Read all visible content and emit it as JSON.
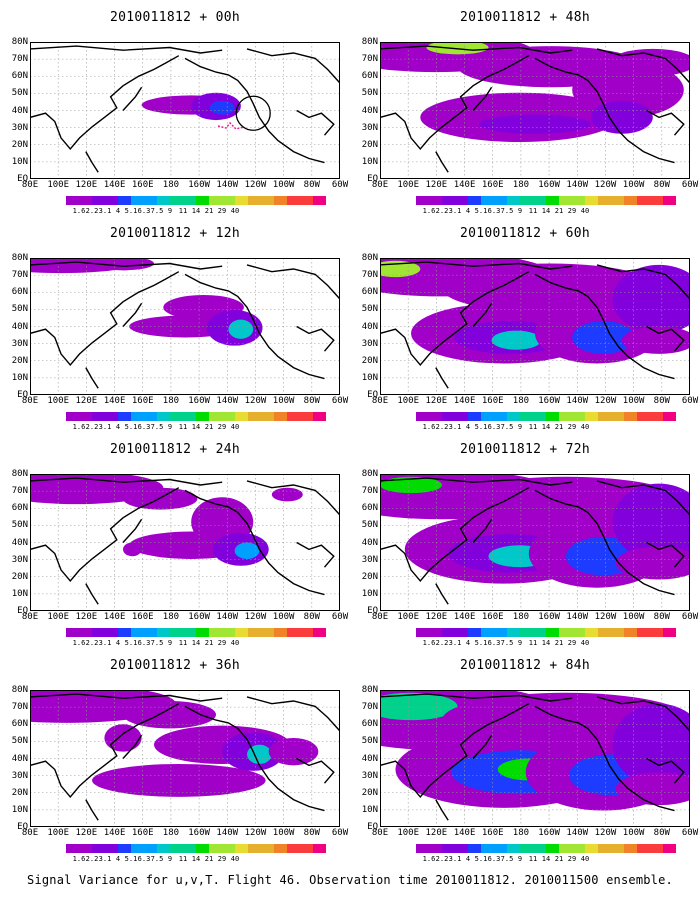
{
  "panels": [
    {
      "title": "2010011812 + 00h",
      "blobs": [
        [
          0.52,
          0.46,
          0.16,
          0.07,
          0
        ],
        [
          0.6,
          0.47,
          0.08,
          0.1,
          1
        ],
        [
          0.62,
          0.48,
          0.04,
          0.05,
          2
        ]
      ],
      "circle": true
    },
    {
      "title": "2010011812 + 12h",
      "blobs": [
        [
          0.56,
          0.36,
          0.13,
          0.09,
          0
        ],
        [
          0.5,
          0.5,
          0.18,
          0.08,
          0
        ],
        [
          0.66,
          0.51,
          0.09,
          0.13,
          1
        ],
        [
          0.68,
          0.52,
          0.04,
          0.07,
          4
        ],
        [
          0.1,
          0.03,
          0.25,
          0.08,
          0
        ],
        [
          0.3,
          0.04,
          0.1,
          0.05,
          0
        ]
      ]
    },
    {
      "title": "2010011812 + 24h",
      "blobs": [
        [
          0.15,
          0.1,
          0.28,
          0.12,
          0
        ],
        [
          0.42,
          0.18,
          0.12,
          0.08,
          0
        ],
        [
          0.62,
          0.35,
          0.1,
          0.18,
          0
        ],
        [
          0.52,
          0.52,
          0.2,
          0.1,
          0
        ],
        [
          0.68,
          0.55,
          0.09,
          0.12,
          1
        ],
        [
          0.7,
          0.56,
          0.04,
          0.06,
          3
        ],
        [
          0.33,
          0.55,
          0.03,
          0.05,
          0
        ],
        [
          0.83,
          0.15,
          0.05,
          0.05,
          0
        ]
      ]
    },
    {
      "title": "2010011812 + 36h",
      "blobs": [
        [
          0.12,
          0.1,
          0.35,
          0.14,
          0
        ],
        [
          0.45,
          0.18,
          0.15,
          0.1,
          0
        ],
        [
          0.3,
          0.35,
          0.06,
          0.1,
          0
        ],
        [
          0.62,
          0.4,
          0.22,
          0.14,
          0
        ],
        [
          0.48,
          0.66,
          0.28,
          0.12,
          0
        ],
        [
          0.72,
          0.45,
          0.1,
          0.14,
          1
        ],
        [
          0.74,
          0.47,
          0.04,
          0.07,
          4
        ],
        [
          0.85,
          0.45,
          0.08,
          0.1,
          0
        ]
      ]
    },
    {
      "title": "2010011812 + 48h",
      "blobs": [
        [
          0.18,
          0.08,
          0.32,
          0.14,
          0
        ],
        [
          0.25,
          0.04,
          0.1,
          0.05,
          7
        ],
        [
          0.55,
          0.18,
          0.3,
          0.15,
          0
        ],
        [
          0.45,
          0.55,
          0.32,
          0.18,
          0
        ],
        [
          0.5,
          0.6,
          0.18,
          0.07,
          1
        ],
        [
          0.8,
          0.35,
          0.18,
          0.2,
          0
        ],
        [
          0.78,
          0.55,
          0.1,
          0.12,
          1
        ],
        [
          0.88,
          0.15,
          0.14,
          0.1,
          0
        ]
      ]
    },
    {
      "title": "2010011812 + 60h",
      "blobs": [
        [
          0.2,
          0.12,
          0.35,
          0.16,
          0
        ],
        [
          0.05,
          0.08,
          0.08,
          0.06,
          7
        ],
        [
          0.55,
          0.22,
          0.35,
          0.18,
          0
        ],
        [
          0.4,
          0.55,
          0.3,
          0.22,
          0
        ],
        [
          0.42,
          0.58,
          0.18,
          0.12,
          1
        ],
        [
          0.44,
          0.6,
          0.08,
          0.07,
          4
        ],
        [
          0.7,
          0.55,
          0.2,
          0.22,
          0
        ],
        [
          0.72,
          0.58,
          0.1,
          0.12,
          2
        ],
        [
          0.9,
          0.3,
          0.15,
          0.25,
          1
        ],
        [
          0.9,
          0.6,
          0.12,
          0.1,
          0
        ]
      ]
    },
    {
      "title": "2010011812 + 72h",
      "blobs": [
        [
          0.2,
          0.15,
          0.38,
          0.18,
          0
        ],
        [
          0.1,
          0.08,
          0.1,
          0.06,
          6
        ],
        [
          0.6,
          0.2,
          0.38,
          0.18,
          0
        ],
        [
          0.4,
          0.55,
          0.32,
          0.25,
          0
        ],
        [
          0.42,
          0.58,
          0.2,
          0.14,
          1
        ],
        [
          0.45,
          0.6,
          0.1,
          0.08,
          4
        ],
        [
          0.7,
          0.58,
          0.22,
          0.25,
          0
        ],
        [
          0.72,
          0.6,
          0.12,
          0.14,
          2
        ],
        [
          0.9,
          0.35,
          0.15,
          0.28,
          1
        ],
        [
          0.9,
          0.65,
          0.14,
          0.12,
          0
        ]
      ]
    },
    {
      "title": "2010011812 + 84h",
      "blobs": [
        [
          0.2,
          0.2,
          0.4,
          0.24,
          0
        ],
        [
          0.1,
          0.12,
          0.15,
          0.1,
          5
        ],
        [
          0.6,
          0.22,
          0.4,
          0.2,
          0
        ],
        [
          0.4,
          0.58,
          0.35,
          0.28,
          0
        ],
        [
          0.45,
          0.6,
          0.22,
          0.16,
          2
        ],
        [
          0.48,
          0.58,
          0.1,
          0.08,
          6
        ],
        [
          0.72,
          0.6,
          0.25,
          0.28,
          0
        ],
        [
          0.75,
          0.62,
          0.14,
          0.15,
          2
        ],
        [
          0.9,
          0.4,
          0.15,
          0.3,
          1
        ],
        [
          0.9,
          0.72,
          0.14,
          0.12,
          0
        ]
      ]
    }
  ],
  "ylabels": [
    "80N",
    "70N",
    "60N",
    "50N",
    "40N",
    "30N",
    "20N",
    "10N",
    "EQ"
  ],
  "xlabels": [
    "80E",
    "100E",
    "120E",
    "140E",
    "160E",
    "180",
    "160W",
    "140W",
    "120W",
    "100W",
    "80W",
    "60W"
  ],
  "colorbar": {
    "labels": [
      "1.6",
      "2.2",
      "3.1",
      "4",
      "5.1",
      "6.3",
      "7.5",
      "9",
      "11",
      "14",
      "21",
      "29",
      "40"
    ],
    "colors": [
      "#a000c8",
      "#8200dc",
      "#1e3cff",
      "#00a0ff",
      "#00c8c8",
      "#00d28c",
      "#00dc00",
      "#a0e632",
      "#e6dc32",
      "#e6af2d",
      "#f08228",
      "#fa3c3c",
      "#f00082"
    ]
  },
  "caption": "Signal Variance for u,v,T. Flight 46. Observation time 2010011812. 2010011500 ensemble."
}
